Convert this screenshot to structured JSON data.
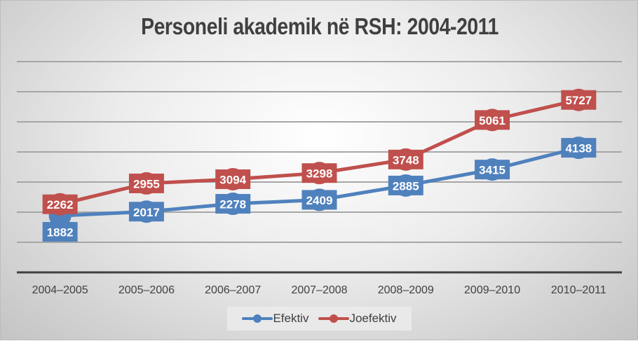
{
  "chart_data": {
    "type": "line",
    "title": "Personeli akademik në RSH: 2004-2011",
    "xlabel": "",
    "ylabel": "",
    "categories": [
      "2004–2005",
      "2005–2006",
      "2006–2007",
      "2007–2008",
      "2008–2009",
      "2009–2010",
      "2010–2011"
    ],
    "series": [
      {
        "name": "Efektiv",
        "color": "#4F81BD",
        "values": [
          1882,
          2017,
          2278,
          2409,
          2885,
          3415,
          4138
        ]
      },
      {
        "name": "Joefektiv",
        "color": "#C0504D",
        "values": [
          2262,
          2955,
          3094,
          3298,
          3748,
          5061,
          5727
        ]
      }
    ],
    "ylim": [
      0,
      7000
    ],
    "ytick_step": 1000,
    "y_tick_labels_visible": false,
    "grid": true,
    "data_labels": true,
    "legend_position": "bottom"
  },
  "legend": {
    "items": [
      {
        "label": "Efektiv",
        "color": "#4F81BD"
      },
      {
        "label": "Joefektiv",
        "color": "#C0504D"
      }
    ]
  }
}
